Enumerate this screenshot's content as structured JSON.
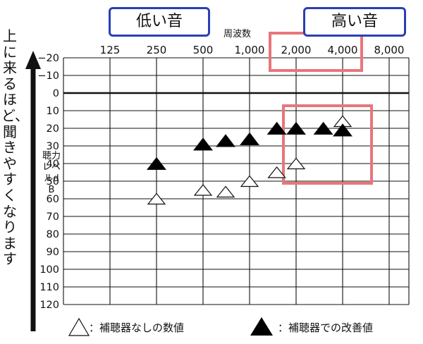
{
  "labels": {
    "low_sound": "低い音",
    "high_sound": "高い音",
    "vertical_note": "上に来るほど、聞きやすくなります",
    "x_title": "周波数",
    "y_title": "聴力レベルdB"
  },
  "legend": {
    "open": "：補聴器なしの数値",
    "filled": "：補聴器での改善値"
  },
  "colors": {
    "label_box_border": "#2a3fb5",
    "highlight": "#e8767a",
    "grid": "#111111"
  },
  "chart_data": {
    "type": "scatter",
    "x_categories": [
      "125",
      "250",
      "500",
      "1,000",
      "2,000",
      "4,000",
      "8,000"
    ],
    "y_ticks": [
      "−20",
      "−10",
      "0",
      "10",
      "20",
      "30",
      "40",
      "50",
      "60",
      "70",
      "80",
      "90",
      "100",
      "110",
      "120"
    ],
    "ylim": [
      -20,
      120
    ],
    "y_inverted": true,
    "series": [
      {
        "name": "補聴器なしの数値",
        "marker": "open-triangle",
        "points": [
          {
            "x": "250",
            "y": 60
          },
          {
            "x": "500",
            "y": 55
          },
          {
            "x": "700",
            "y": 56
          },
          {
            "x": "1,000",
            "y": 50
          },
          {
            "x": "1,500",
            "y": 45
          },
          {
            "x": "2,000",
            "y": 40
          },
          {
            "x": "3,000",
            "y": 20
          },
          {
            "x": "4,000",
            "y": 16
          }
        ]
      },
      {
        "name": "補聴器での改善値",
        "marker": "filled-triangle",
        "points": [
          {
            "x": "250",
            "y": 40
          },
          {
            "x": "500",
            "y": 29
          },
          {
            "x": "700",
            "y": 27
          },
          {
            "x": "1,000",
            "y": 26
          },
          {
            "x": "1,500",
            "y": 20
          },
          {
            "x": "2,000",
            "y": 20
          },
          {
            "x": "3,000",
            "y": 20
          },
          {
            "x": "4,000",
            "y": 21
          }
        ]
      }
    ]
  }
}
